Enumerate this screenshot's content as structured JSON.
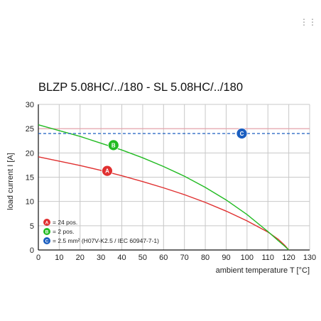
{
  "corner_mark": "⋮⋮",
  "chart_data": {
    "type": "line",
    "title": "BLZP 5.08HC/../180 - SL 5.08HC/../180",
    "xlabel": "ambient temperature T [°C]",
    "ylabel": "load current I [A]",
    "xlim": [
      0,
      130
    ],
    "ylim": [
      0,
      30
    ],
    "xticks": [
      0,
      10,
      20,
      30,
      40,
      50,
      60,
      70,
      80,
      90,
      100,
      110,
      120,
      130
    ],
    "yticks": [
      0,
      5,
      10,
      15,
      20,
      25,
      30
    ],
    "grid": true,
    "reference_line": {
      "y": 25,
      "color": "#e8a0a8"
    },
    "series": [
      {
        "badge": "A",
        "color": "#e03030",
        "x": [
          0,
          10,
          20,
          30,
          40,
          50,
          60,
          70,
          80,
          90,
          100,
          110,
          115,
          118,
          120
        ],
        "y": [
          19.2,
          18.3,
          17.4,
          16.4,
          15.3,
          14.1,
          12.8,
          11.4,
          9.8,
          8.0,
          6.0,
          3.7,
          2.2,
          1.0,
          0
        ],
        "badge_point": [
          33,
          16.3
        ]
      },
      {
        "badge": "B",
        "color": "#22bb22",
        "x": [
          0,
          10,
          20,
          30,
          40,
          50,
          60,
          70,
          80,
          90,
          100,
          110,
          115,
          118,
          120
        ],
        "y": [
          25.8,
          24.6,
          23.4,
          22.0,
          20.6,
          19.0,
          17.2,
          15.2,
          12.9,
          10.3,
          7.3,
          3.8,
          1.9,
          0.8,
          0
        ],
        "badge_point": [
          36,
          21.6
        ]
      },
      {
        "badge": "C",
        "color": "#1a5ec0",
        "dashed": true,
        "x": [
          0,
          130
        ],
        "y": [
          24,
          24
        ],
        "badge_point": [
          97.5,
          24
        ]
      }
    ],
    "legend": {
      "placement": "bottom-left",
      "entries": [
        {
          "badge": "A",
          "color": "#e03030",
          "text": "= 24 pos."
        },
        {
          "badge": "B",
          "color": "#22bb22",
          "text": "= 2 pos."
        },
        {
          "badge": "C",
          "color": "#1a5ec0",
          "text": "= 2.5 mm² (H07V-K2.5 / IEC 60947-7-1)"
        }
      ]
    }
  }
}
